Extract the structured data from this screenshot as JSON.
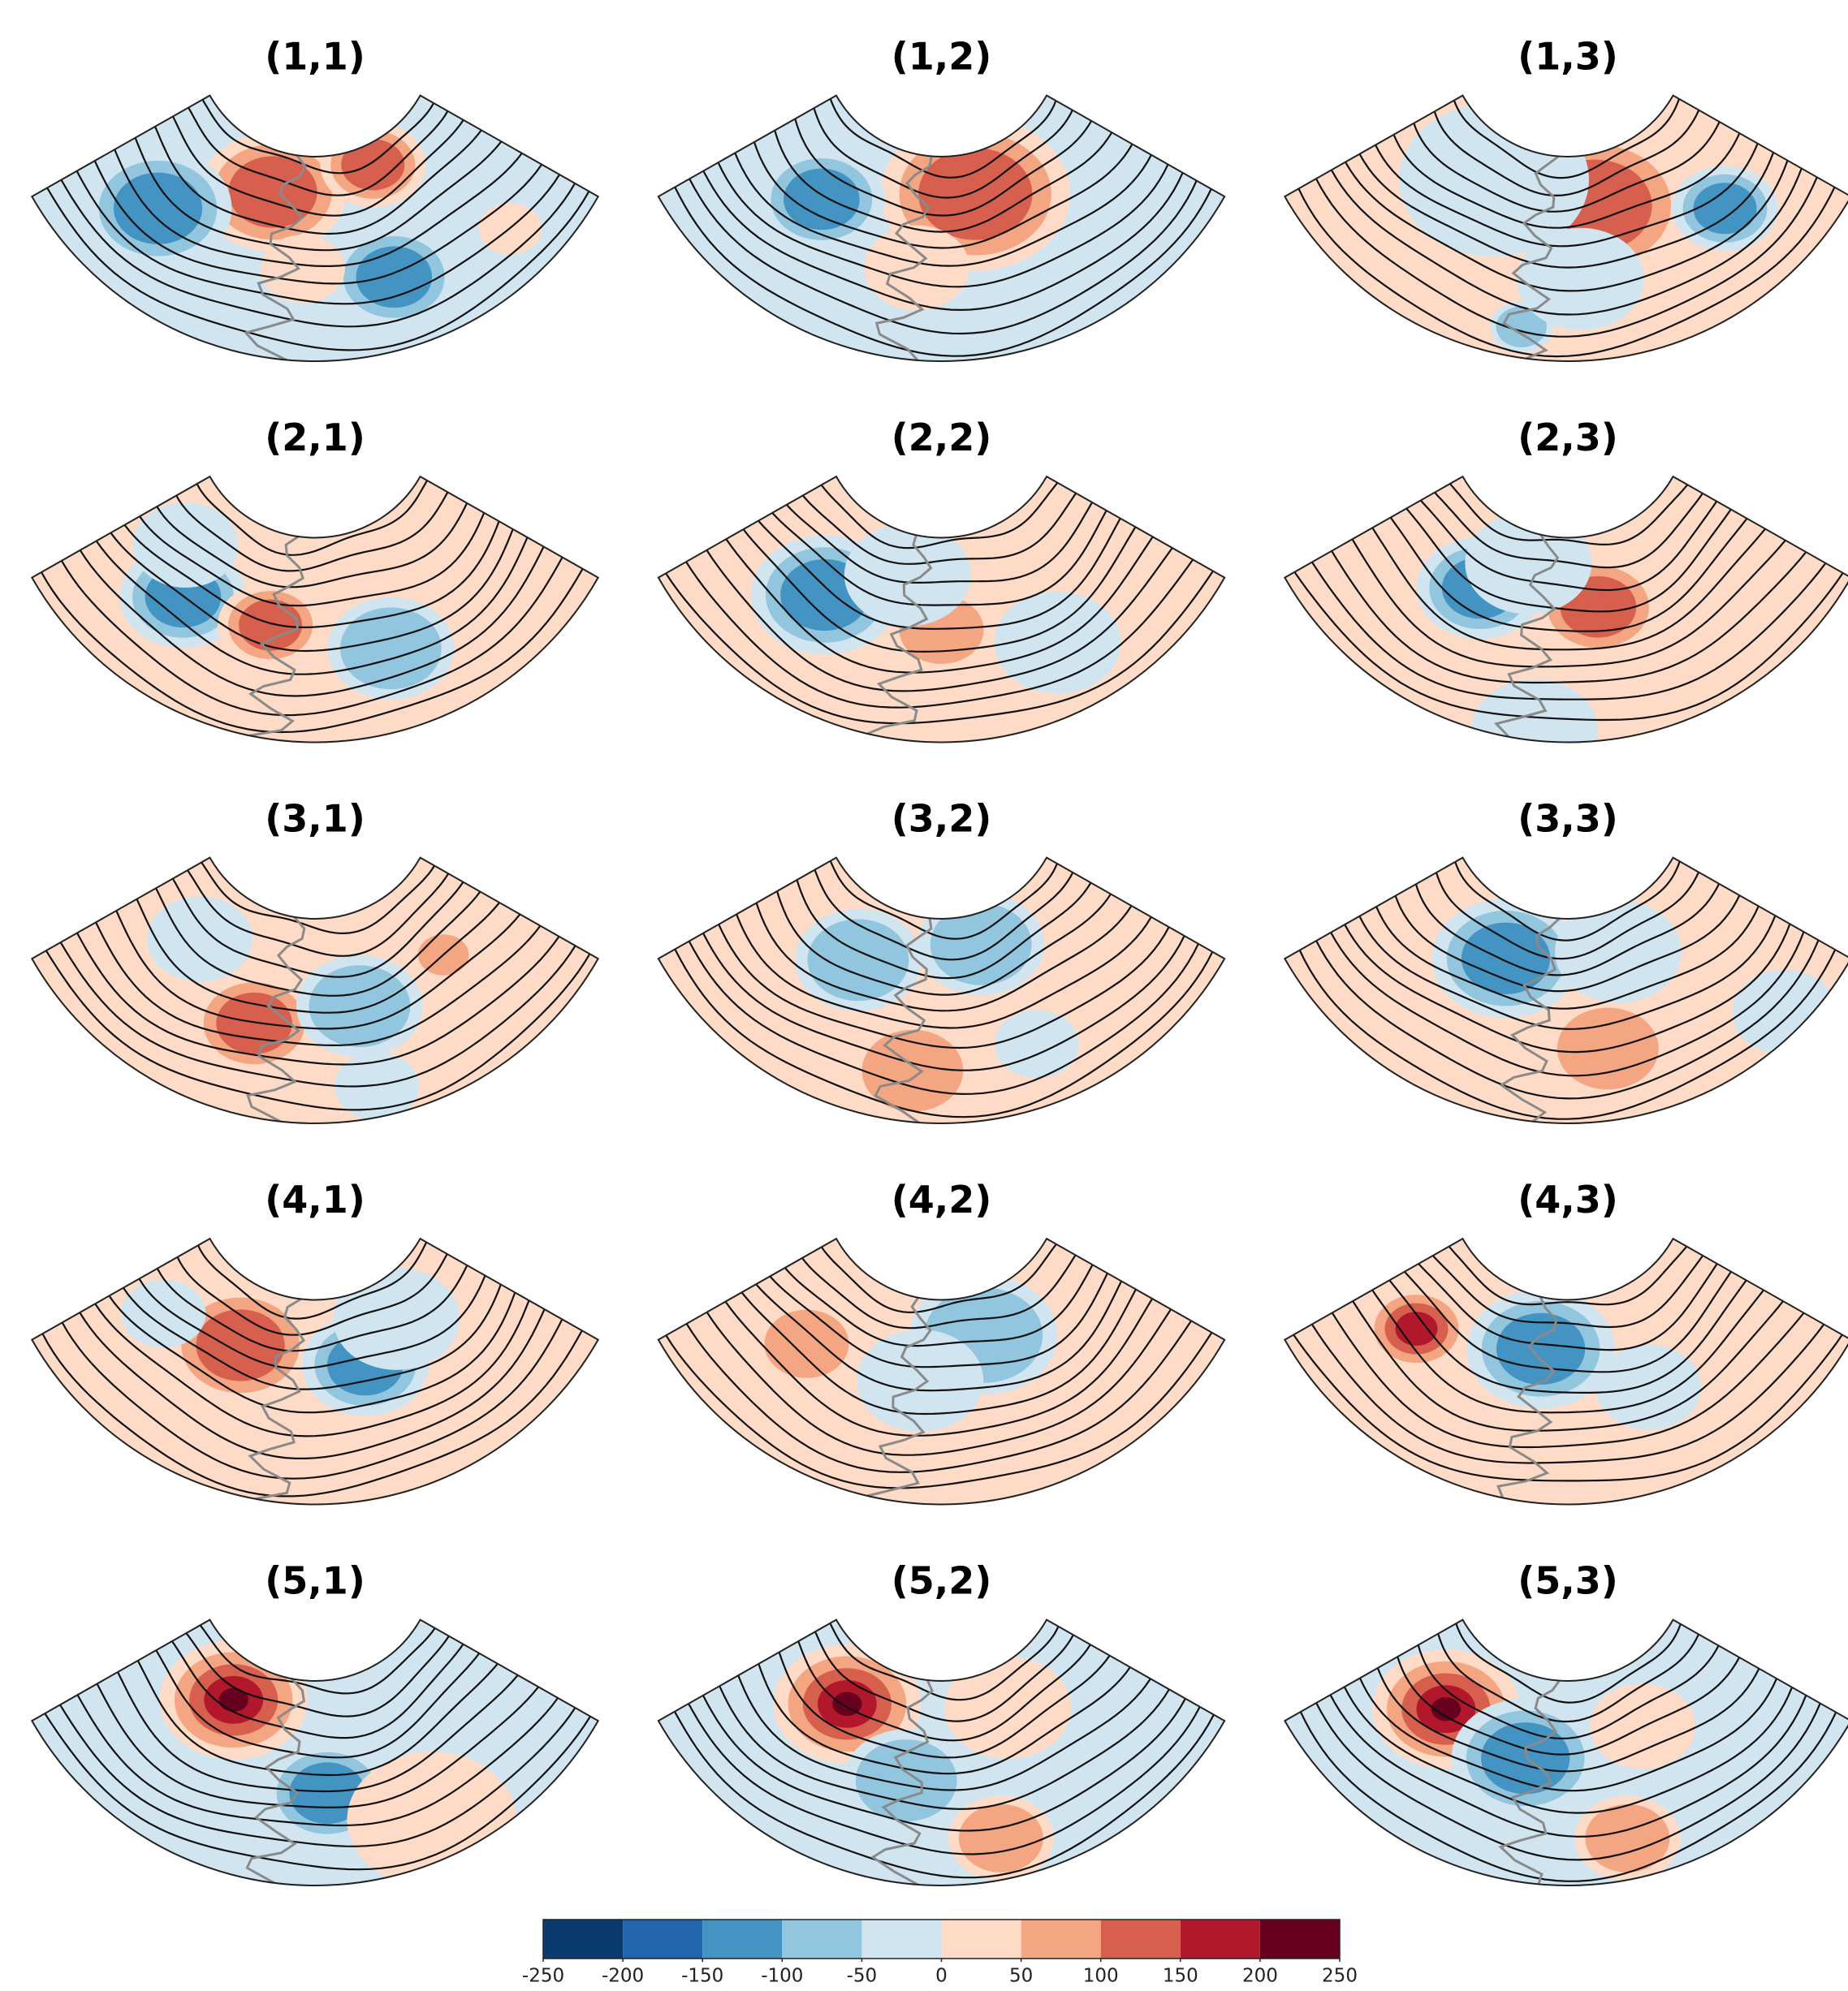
{
  "panels": [
    {
      "title": "(1,1)"
    },
    {
      "title": "(1,2)"
    },
    {
      "title": "(1,3)"
    },
    {
      "title": "(2,1)"
    },
    {
      "title": "(2,2)"
    },
    {
      "title": "(2,3)"
    },
    {
      "title": "(3,1)"
    },
    {
      "title": "(3,2)"
    },
    {
      "title": "(3,3)"
    },
    {
      "title": "(4,1)"
    },
    {
      "title": "(4,2)"
    },
    {
      "title": "(4,3)"
    },
    {
      "title": "(5,1)"
    },
    {
      "title": "(5,2)"
    },
    {
      "title": "(5,3)"
    }
  ],
  "chart_data": {
    "type": "colorbar",
    "xlim": [
      -250,
      250
    ],
    "xticks": [
      -250,
      -200,
      -150,
      -100,
      -50,
      0,
      50,
      100,
      150,
      200,
      250
    ],
    "colors": [
      "#0b3a6e",
      "#2166ac",
      "#4393c3",
      "#92c5de",
      "#d1e5f0",
      "#fddbc7",
      "#f4a582",
      "#d6604d",
      "#b2182b",
      "#67001f"
    ]
  }
}
